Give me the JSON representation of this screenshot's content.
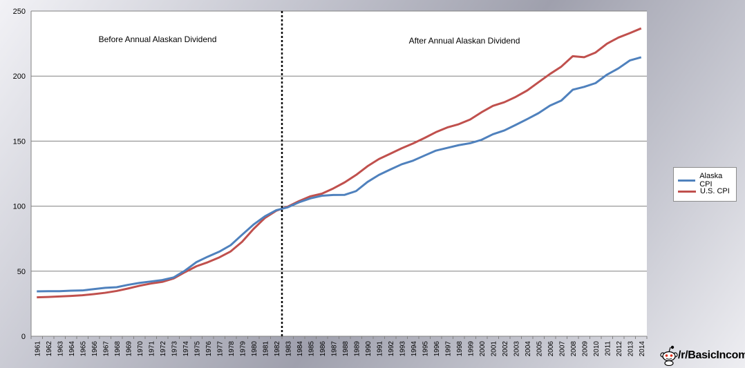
{
  "chart_data": {
    "type": "line",
    "title": "",
    "xlabel": "",
    "ylabel": "",
    "ylim": [
      0,
      250
    ],
    "yticks": [
      0,
      50,
      100,
      150,
      200,
      250
    ],
    "grid": true,
    "legend_position": "right",
    "x": [
      "1961",
      "1962",
      "1963",
      "1964",
      "1965",
      "1966",
      "1967",
      "1968",
      "1969",
      "1970",
      "1971",
      "1972",
      "1973",
      "1974",
      "1975",
      "1976",
      "1977",
      "1978",
      "1979",
      "1980",
      "1981",
      "1982",
      "1983",
      "1984",
      "1985",
      "1986",
      "1987",
      "1988",
      "1989",
      "1990",
      "1991",
      "1992",
      "1993",
      "1994",
      "1995",
      "1996",
      "1997",
      "1998",
      "1999",
      "2000",
      "2001",
      "2002",
      "2003",
      "2004",
      "2005",
      "2006",
      "2007",
      "2008",
      "2009",
      "2010",
      "2011",
      "2012",
      "2013",
      "2014"
    ],
    "series": [
      {
        "name": "Alaska CPI",
        "color": "#4f81bd",
        "values": [
          34.5,
          34.6,
          34.6,
          35.0,
          35.2,
          36.2,
          37.2,
          37.7,
          39.5,
          41.0,
          42.1,
          43.2,
          45.2,
          50.5,
          57.0,
          61.2,
          65.0,
          70.0,
          78.0,
          85.8,
          92.2,
          96.9,
          99.1,
          103.0,
          106.0,
          108.0,
          108.6,
          108.7,
          111.6,
          118.6,
          124.0,
          128.2,
          132.2,
          135.0,
          138.9,
          142.7,
          144.8,
          146.9,
          148.4,
          151.0,
          155.3,
          158.2,
          162.5,
          166.9,
          171.5,
          177.3,
          181.2,
          189.5,
          191.7,
          194.6,
          201.1,
          205.9,
          212.0,
          214.5
        ]
      },
      {
        "name": "U.S. CPI",
        "color": "#c0504d",
        "values": [
          29.9,
          30.2,
          30.6,
          31.0,
          31.5,
          32.4,
          33.4,
          34.8,
          36.7,
          38.8,
          40.5,
          41.8,
          44.4,
          49.3,
          53.8,
          56.9,
          60.6,
          65.2,
          72.6,
          82.4,
          90.9,
          96.5,
          99.6,
          103.9,
          107.6,
          109.6,
          113.6,
          118.3,
          124.0,
          130.7,
          136.2,
          140.3,
          144.5,
          148.2,
          152.4,
          156.9,
          160.5,
          163.0,
          166.6,
          172.2,
          177.1,
          179.9,
          184.0,
          188.9,
          195.3,
          201.6,
          207.3,
          215.3,
          214.5,
          218.1,
          224.9,
          229.6,
          233.0,
          236.7
        ]
      }
    ],
    "annotations": [
      {
        "text": "Before Annual Alaskan Dividend"
      },
      {
        "text": "After Annual  Alaskan Dividend"
      }
    ],
    "divider_year": "1982.5"
  },
  "watermark": {
    "text": "/r/BasicIncome",
    "icon": "reddit-alien-icon"
  }
}
